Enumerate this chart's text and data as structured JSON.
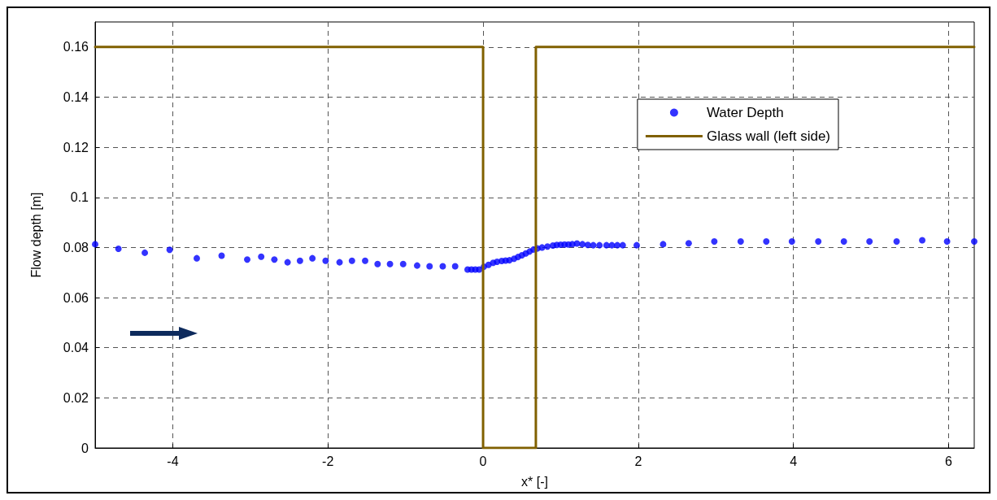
{
  "chart_data": {
    "type": "scatter",
    "xlabel": "x* [-]",
    "ylabel": "Flow depth [m]",
    "series": [
      {
        "name": "Water Depth",
        "color": "#0000ff",
        "marker": "circle",
        "x": [
          -5.0,
          -4.7,
          -4.36,
          -4.04,
          -3.69,
          -3.37,
          -3.04,
          -2.86,
          -2.69,
          -2.52,
          -2.36,
          -2.2,
          -2.03,
          -1.85,
          -1.69,
          -1.52,
          -1.36,
          -1.2,
          -1.03,
          -0.85,
          -0.69,
          -0.52,
          -0.36,
          -0.2,
          -0.15,
          -0.1,
          -0.05,
          0.01,
          0.07,
          0.13,
          0.18,
          0.24,
          0.29,
          0.34,
          0.4,
          0.45,
          0.5,
          0.55,
          0.6,
          0.65,
          0.7,
          0.76,
          0.83,
          0.9,
          0.95,
          1.0,
          1.05,
          1.1,
          1.15,
          1.21,
          1.28,
          1.35,
          1.42,
          1.5,
          1.59,
          1.66,
          1.73,
          1.8,
          1.98,
          2.32,
          2.65,
          2.98,
          3.32,
          3.65,
          3.98,
          4.32,
          4.65,
          4.98,
          5.33,
          5.66,
          5.98,
          6.33
        ],
        "values": [
          0.0813,
          0.0795,
          0.0779,
          0.0791,
          0.0757,
          0.0767,
          0.0752,
          0.0763,
          0.0752,
          0.0741,
          0.0747,
          0.0757,
          0.0747,
          0.0741,
          0.0747,
          0.0747,
          0.0734,
          0.0734,
          0.0734,
          0.0728,
          0.0725,
          0.0725,
          0.0725,
          0.0712,
          0.0712,
          0.0712,
          0.0712,
          0.0723,
          0.0731,
          0.0739,
          0.0743,
          0.0746,
          0.0748,
          0.0749,
          0.0755,
          0.0762,
          0.0769,
          0.0776,
          0.0784,
          0.0792,
          0.0796,
          0.08,
          0.0804,
          0.0808,
          0.081,
          0.0811,
          0.0812,
          0.0812,
          0.0813,
          0.0816,
          0.0813,
          0.081,
          0.0809,
          0.0809,
          0.0809,
          0.0809,
          0.0809,
          0.0809,
          0.0809,
          0.0813,
          0.0817,
          0.0824,
          0.0824,
          0.0824,
          0.0824,
          0.0824,
          0.0824,
          0.0824,
          0.0824,
          0.0829,
          0.0824,
          0.0824
        ]
      },
      {
        "name": "Glass wall (left side)",
        "type": "line",
        "color": "#806000",
        "marker": "none",
        "line_style": "solid",
        "x": [
          -5,
          0,
          0,
          0.68,
          0.68,
          6.33
        ],
        "values": [
          0.16,
          0.16,
          0,
          0,
          0.16,
          0.16
        ]
      }
    ],
    "xlim": [
      -5,
      6.33
    ],
    "xticks": [
      -4,
      -2,
      0,
      2,
      4,
      6
    ],
    "ylim": [
      0,
      0.17
    ],
    "yticks": [
      0,
      0.02,
      0.04,
      0.06,
      0.08,
      0.1,
      0.12,
      0.14,
      0.16
    ],
    "grid": true,
    "legend": "top right"
  }
}
